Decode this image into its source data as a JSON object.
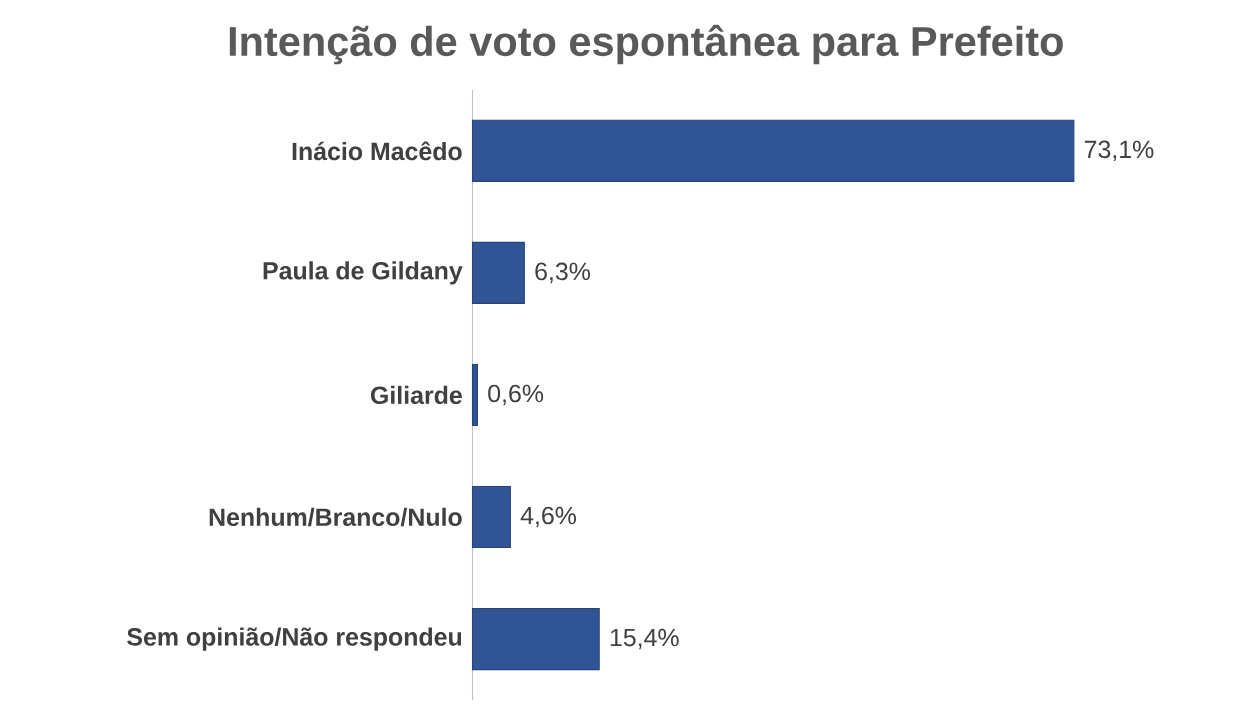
{
  "chart_data": {
    "type": "bar",
    "orientation": "horizontal",
    "title": "Intenção de voto espontânea para Prefeito",
    "categories": [
      "Inácio Macêdo",
      "Paula de Gildany",
      "Giliarde",
      "Nenhum/Branco/Nulo",
      "Sem opinião/Não respondeu"
    ],
    "values": [
      73.1,
      6.3,
      0.6,
      4.6,
      15.4
    ],
    "value_labels": [
      "73,1%",
      "6,3%",
      "0,6%",
      "4,6%",
      "15,4%"
    ],
    "color": "#2f5597",
    "tick_labels": "y"
  }
}
